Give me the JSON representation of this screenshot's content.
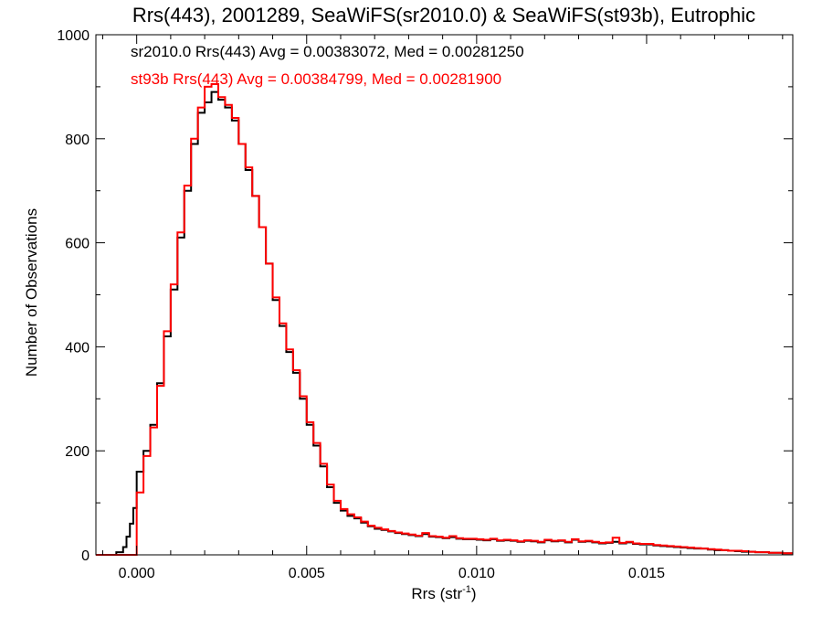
{
  "chart_data": {
    "type": "line",
    "step": true,
    "title": "Rrs(443), 2001289, SeaWiFS(sr2010.0) & SeaWiFS(st93b), Eutrophic",
    "xlabel": "Rrs (str",
    "xlabel_sup": "-1",
    "xlabel_suffix": ")",
    "ylabel": "Number of Observations",
    "xlim": [
      -0.0012,
      0.0193
    ],
    "ylim": [
      0,
      1000
    ],
    "x_ticks": [
      0.0,
      0.005,
      0.01,
      0.015
    ],
    "x_tick_labels": [
      "0.000",
      "0.005",
      "0.010",
      "0.015"
    ],
    "y_ticks": [
      0,
      200,
      400,
      600,
      800,
      1000
    ],
    "y_tick_labels": [
      "0",
      "200",
      "400",
      "600",
      "800",
      "1000"
    ],
    "grid": false,
    "annotations": [
      {
        "text": "sr2010.0 Rrs(443) Avg = 0.00383072, Med = 0.00281250",
        "color": "#000000"
      },
      {
        "text": "st93b Rrs(443) Avg = 0.00384799, Med = 0.00281900",
        "color": "#ff0000"
      }
    ],
    "series": [
      {
        "color": "#000000",
        "x": [
          -0.0012,
          -0.0006,
          -0.0004,
          -0.0003,
          -0.0002,
          -0.0001,
          0.0,
          0.0002,
          0.0004,
          0.0006,
          0.0008,
          0.001,
          0.0012,
          0.0014,
          0.0016,
          0.0018,
          0.002,
          0.0022,
          0.0024,
          0.0026,
          0.0028,
          0.003,
          0.0032,
          0.0034,
          0.0036,
          0.0038,
          0.004,
          0.0042,
          0.0044,
          0.0046,
          0.0048,
          0.005,
          0.0052,
          0.0054,
          0.0056,
          0.0058,
          0.006,
          0.0062,
          0.0064,
          0.0066,
          0.0068,
          0.007,
          0.0072,
          0.0074,
          0.0076,
          0.0078,
          0.008,
          0.0082,
          0.0084,
          0.0086,
          0.0088,
          0.009,
          0.0092,
          0.0094,
          0.0096,
          0.0098,
          0.01,
          0.0102,
          0.0104,
          0.0106,
          0.0108,
          0.011,
          0.0112,
          0.0114,
          0.0116,
          0.0118,
          0.012,
          0.0122,
          0.0124,
          0.0126,
          0.0128,
          0.013,
          0.0132,
          0.0134,
          0.0136,
          0.0138,
          0.014,
          0.0142,
          0.0144,
          0.0146,
          0.0148,
          0.015,
          0.0152,
          0.0154,
          0.0156,
          0.0158,
          0.016,
          0.0162,
          0.0164,
          0.0166,
          0.0168,
          0.017,
          0.0172,
          0.0174,
          0.0176,
          0.0178,
          0.018,
          0.0182,
          0.0184,
          0.0186,
          0.0188,
          0.019
        ],
        "values": [
          0,
          5,
          15,
          35,
          60,
          90,
          160,
          200,
          250,
          330,
          420,
          510,
          610,
          700,
          790,
          850,
          870,
          890,
          875,
          860,
          835,
          790,
          740,
          690,
          630,
          560,
          490,
          440,
          390,
          350,
          300,
          250,
          210,
          170,
          130,
          100,
          85,
          75,
          70,
          62,
          55,
          50,
          48,
          45,
          42,
          40,
          38,
          36,
          40,
          35,
          34,
          32,
          34,
          31,
          30,
          30,
          29,
          28,
          30,
          27,
          28,
          27,
          25,
          27,
          26,
          24,
          28,
          26,
          27,
          24,
          29,
          25,
          26,
          24,
          22,
          23,
          25,
          22,
          24,
          21,
          20,
          20,
          18,
          17,
          16,
          15,
          14,
          13,
          12,
          12,
          10,
          9,
          9,
          8,
          7,
          6,
          6,
          5,
          5,
          4,
          4,
          3
        ]
      },
      {
        "color": "#ff0000",
        "x": [
          -0.0012,
          -0.0006,
          -0.0004,
          -0.0003,
          -0.0002,
          -0.0001,
          0.0,
          0.0002,
          0.0004,
          0.0006,
          0.0008,
          0.001,
          0.0012,
          0.0014,
          0.0016,
          0.0018,
          0.002,
          0.0022,
          0.0024,
          0.0026,
          0.0028,
          0.003,
          0.0032,
          0.0034,
          0.0036,
          0.0038,
          0.004,
          0.0042,
          0.0044,
          0.0046,
          0.0048,
          0.005,
          0.0052,
          0.0054,
          0.0056,
          0.0058,
          0.006,
          0.0062,
          0.0064,
          0.0066,
          0.0068,
          0.007,
          0.0072,
          0.0074,
          0.0076,
          0.0078,
          0.008,
          0.0082,
          0.0084,
          0.0086,
          0.0088,
          0.009,
          0.0092,
          0.0094,
          0.0096,
          0.0098,
          0.01,
          0.0102,
          0.0104,
          0.0106,
          0.0108,
          0.011,
          0.0112,
          0.0114,
          0.0116,
          0.0118,
          0.012,
          0.0122,
          0.0124,
          0.0126,
          0.0128,
          0.013,
          0.0132,
          0.0134,
          0.0136,
          0.0138,
          0.014,
          0.0142,
          0.0144,
          0.0146,
          0.0148,
          0.015,
          0.0152,
          0.0154,
          0.0156,
          0.0158,
          0.016,
          0.0162,
          0.0164,
          0.0166,
          0.0168,
          0.017,
          0.0172,
          0.0174,
          0.0176,
          0.0178,
          0.018,
          0.0182,
          0.0184,
          0.0186,
          0.0188,
          0.019
        ],
        "values": [
          0,
          0,
          0,
          0,
          0,
          0,
          120,
          190,
          245,
          325,
          430,
          520,
          620,
          710,
          800,
          860,
          900,
          905,
          880,
          865,
          840,
          790,
          745,
          690,
          630,
          560,
          495,
          445,
          395,
          355,
          305,
          255,
          215,
          175,
          135,
          104,
          88,
          78,
          72,
          64,
          56,
          52,
          49,
          46,
          43,
          41,
          39,
          37,
          42,
          36,
          35,
          33,
          36,
          32,
          31,
          31,
          30,
          29,
          31,
          28,
          29,
          28,
          26,
          28,
          27,
          25,
          29,
          27,
          28,
          25,
          30,
          26,
          27,
          25,
          23,
          24,
          33,
          23,
          25,
          22,
          21,
          21,
          19,
          18,
          17,
          16,
          15,
          14,
          13,
          12,
          11,
          10,
          9,
          8,
          8,
          7,
          6,
          5,
          5,
          4,
          4,
          3
        ]
      }
    ]
  }
}
